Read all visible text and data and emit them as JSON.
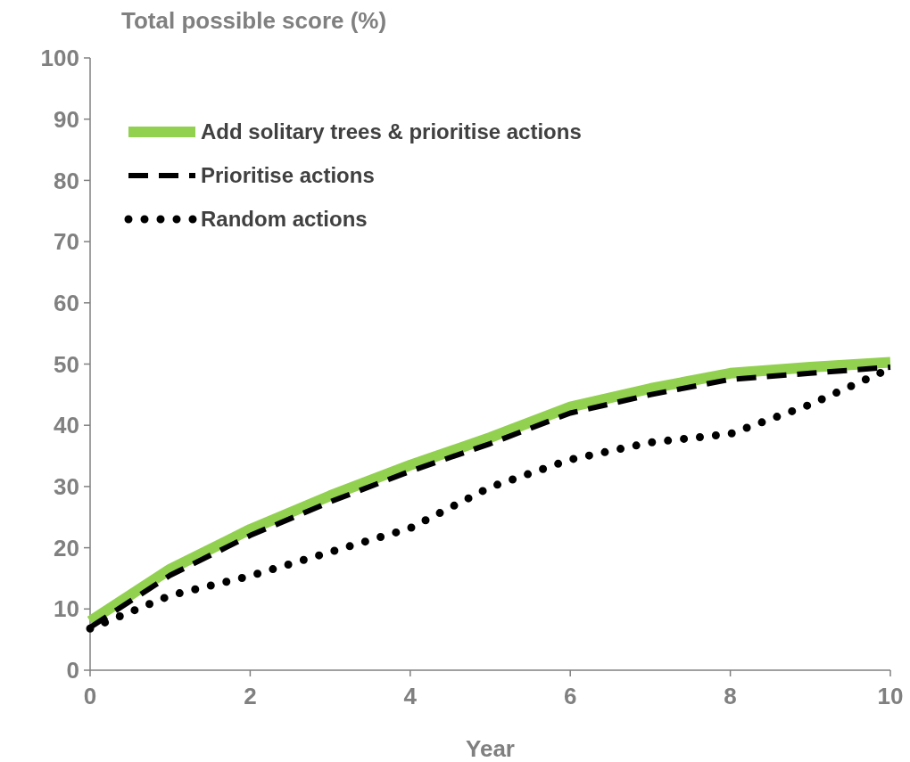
{
  "chart_data": {
    "type": "line",
    "xlabel": "Year",
    "ylabel": "Total possible score (%)",
    "x": [
      0,
      1,
      2,
      3,
      4,
      5,
      6,
      7,
      8,
      9,
      10
    ],
    "xlim": [
      0,
      10
    ],
    "xticks": [
      0,
      2,
      4,
      6,
      8,
      10
    ],
    "ylim": [
      0,
      100
    ],
    "yticks": [
      0,
      10,
      20,
      30,
      40,
      50,
      60,
      70,
      80,
      90,
      100
    ],
    "grid": false,
    "legend": "top left",
    "series": [
      {
        "name": "Add solitary trees & prioritise actions",
        "color": "#92d050",
        "line_style": "solid",
        "values": [
          8,
          16.5,
          23,
          28.5,
          33.5,
          38,
          43,
          46,
          48.5,
          49.5,
          50.3
        ]
      },
      {
        "name": "Prioritise actions",
        "color": "#000000",
        "line_style": "dashed",
        "values": [
          7,
          15.5,
          22,
          27.5,
          32.5,
          37,
          42,
          45,
          47.5,
          48.5,
          49.5
        ]
      },
      {
        "name": "Random actions",
        "color": "#000000",
        "line_style": "dotted",
        "values": [
          6.8,
          12.2,
          15.4,
          19.3,
          23.2,
          29.9,
          34.4,
          37.2,
          38.6,
          43.4,
          49.3
        ]
      }
    ]
  }
}
